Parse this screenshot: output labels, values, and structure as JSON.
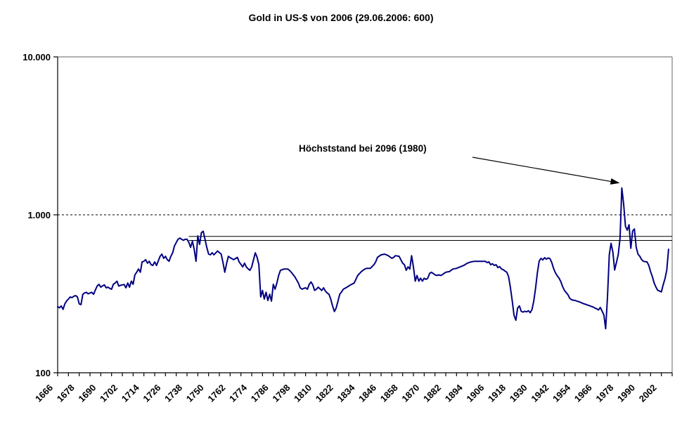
{
  "chart_data": {
    "type": "line",
    "title": "Gold in US-$ von 2006 (29.06.2006: 600)",
    "xlabel": "",
    "ylabel": "",
    "y_scale": "log",
    "y_range": [
      100,
      10000
    ],
    "y_ticks": [
      {
        "label": "100",
        "value": 100
      },
      {
        "label": "1.000",
        "value": 1000
      },
      {
        "label": "10.000",
        "value": 10000
      }
    ],
    "x_range": [
      1666,
      2008
    ],
    "x_tick_step": 6,
    "x_labels": [
      1666,
      1678,
      1690,
      1702,
      1714,
      1726,
      1738,
      1750,
      1762,
      1774,
      1786,
      1798,
      1810,
      1822,
      1834,
      1846,
      1858,
      1870,
      1882,
      1894,
      1906,
      1918,
      1930,
      1942,
      1954,
      1966,
      1978,
      1990,
      2002
    ],
    "grid": "off",
    "legend": "none",
    "colors": {
      "series": "#000080",
      "frame": "#808080",
      "axis": "#000000",
      "annotation": "#000000"
    },
    "reference_lines": [
      {
        "value": 1000,
        "style": "dotted",
        "from_year": 1666
      },
      {
        "value": 730,
        "style": "solid",
        "from_year": 1739
      },
      {
        "value": 688,
        "style": "solid",
        "from_year": 1739
      }
    ],
    "annotation": {
      "text": "Höchststand bei 2096 (1980)",
      "points_to_year": 1980,
      "arrow_from": [
        672,
        224
      ]
    },
    "series": [
      {
        "name": "Gold in US-$ von 2006",
        "color": "#000080",
        "points": [
          [
            1666,
            262
          ],
          [
            1667,
            258
          ],
          [
            1668,
            265
          ],
          [
            1669,
            252
          ],
          [
            1670,
            273
          ],
          [
            1671,
            285
          ],
          [
            1672,
            293
          ],
          [
            1673,
            302
          ],
          [
            1674,
            299
          ],
          [
            1675,
            305
          ],
          [
            1676,
            308
          ],
          [
            1677,
            302
          ],
          [
            1678,
            273
          ],
          [
            1679,
            270
          ],
          [
            1680,
            314
          ],
          [
            1681,
            320
          ],
          [
            1682,
            323
          ],
          [
            1683,
            316
          ],
          [
            1684,
            320
          ],
          [
            1685,
            323
          ],
          [
            1686,
            314
          ],
          [
            1687,
            335
          ],
          [
            1688,
            354
          ],
          [
            1689,
            363
          ],
          [
            1690,
            348
          ],
          [
            1691,
            355
          ],
          [
            1692,
            360
          ],
          [
            1693,
            345
          ],
          [
            1694,
            348
          ],
          [
            1695,
            342
          ],
          [
            1696,
            338
          ],
          [
            1697,
            363
          ],
          [
            1698,
            370
          ],
          [
            1699,
            380
          ],
          [
            1700,
            354
          ],
          [
            1701,
            358
          ],
          [
            1702,
            360
          ],
          [
            1703,
            362
          ],
          [
            1704,
            345
          ],
          [
            1705,
            370
          ],
          [
            1706,
            348
          ],
          [
            1707,
            380
          ],
          [
            1708,
            363
          ],
          [
            1709,
            417
          ],
          [
            1710,
            433
          ],
          [
            1711,
            454
          ],
          [
            1712,
            433
          ],
          [
            1713,
            503
          ],
          [
            1714,
            508
          ],
          [
            1715,
            520
          ],
          [
            1716,
            494
          ],
          [
            1717,
            508
          ],
          [
            1718,
            483
          ],
          [
            1719,
            478
          ],
          [
            1720,
            503
          ],
          [
            1721,
            478
          ],
          [
            1722,
            510
          ],
          [
            1723,
            546
          ],
          [
            1724,
            564
          ],
          [
            1725,
            530
          ],
          [
            1726,
            546
          ],
          [
            1727,
            520
          ],
          [
            1728,
            508
          ],
          [
            1729,
            546
          ],
          [
            1730,
            575
          ],
          [
            1731,
            635
          ],
          [
            1732,
            668
          ],
          [
            1733,
            700
          ],
          [
            1734,
            713
          ],
          [
            1735,
            700
          ],
          [
            1736,
            690
          ],
          [
            1737,
            700
          ],
          [
            1738,
            700
          ],
          [
            1739,
            668
          ],
          [
            1740,
            622
          ],
          [
            1741,
            680
          ],
          [
            1742,
            605
          ],
          [
            1743,
            508
          ],
          [
            1744,
            735
          ],
          [
            1745,
            650
          ],
          [
            1746,
            770
          ],
          [
            1747,
            787
          ],
          [
            1748,
            700
          ],
          [
            1749,
            622
          ],
          [
            1750,
            564
          ],
          [
            1751,
            558
          ],
          [
            1752,
            575
          ],
          [
            1753,
            558
          ],
          [
            1755,
            590
          ],
          [
            1757,
            564
          ],
          [
            1758,
            500
          ],
          [
            1759,
            433
          ],
          [
            1760,
            490
          ],
          [
            1761,
            546
          ],
          [
            1762,
            535
          ],
          [
            1764,
            520
          ],
          [
            1766,
            538
          ],
          [
            1767,
            503
          ],
          [
            1768,
            485
          ],
          [
            1769,
            468
          ],
          [
            1770,
            494
          ],
          [
            1771,
            468
          ],
          [
            1772,
            455
          ],
          [
            1773,
            445
          ],
          [
            1774,
            468
          ],
          [
            1775,
            520
          ],
          [
            1776,
            575
          ],
          [
            1777,
            538
          ],
          [
            1778,
            483
          ],
          [
            1779,
            302
          ],
          [
            1780,
            332
          ],
          [
            1781,
            293
          ],
          [
            1782,
            323
          ],
          [
            1783,
            287
          ],
          [
            1784,
            314
          ],
          [
            1785,
            284
          ],
          [
            1786,
            363
          ],
          [
            1787,
            338
          ],
          [
            1788,
            370
          ],
          [
            1789,
            413
          ],
          [
            1790,
            445
          ],
          [
            1792,
            454
          ],
          [
            1794,
            454
          ],
          [
            1795,
            445
          ],
          [
            1796,
            433
          ],
          [
            1798,
            405
          ],
          [
            1800,
            370
          ],
          [
            1801,
            345
          ],
          [
            1802,
            338
          ],
          [
            1803,
            342
          ],
          [
            1804,
            345
          ],
          [
            1805,
            338
          ],
          [
            1806,
            363
          ],
          [
            1807,
            376
          ],
          [
            1808,
            360
          ],
          [
            1809,
            332
          ],
          [
            1810,
            338
          ],
          [
            1811,
            348
          ],
          [
            1812,
            340
          ],
          [
            1813,
            332
          ],
          [
            1814,
            345
          ],
          [
            1815,
            329
          ],
          [
            1816,
            320
          ],
          [
            1817,
            314
          ],
          [
            1818,
            293
          ],
          [
            1819,
            265
          ],
          [
            1820,
            244
          ],
          [
            1821,
            257
          ],
          [
            1822,
            284
          ],
          [
            1823,
            314
          ],
          [
            1824,
            325
          ],
          [
            1825,
            338
          ],
          [
            1827,
            348
          ],
          [
            1829,
            360
          ],
          [
            1831,
            370
          ],
          [
            1833,
            413
          ],
          [
            1835,
            437
          ],
          [
            1837,
            454
          ],
          [
            1838,
            458
          ],
          [
            1840,
            458
          ],
          [
            1842,
            483
          ],
          [
            1843,
            503
          ],
          [
            1844,
            538
          ],
          [
            1846,
            558
          ],
          [
            1848,
            564
          ],
          [
            1850,
            551
          ],
          [
            1852,
            530
          ],
          [
            1853,
            538
          ],
          [
            1854,
            551
          ],
          [
            1856,
            546
          ],
          [
            1858,
            494
          ],
          [
            1859,
            483
          ],
          [
            1860,
            445
          ],
          [
            1861,
            468
          ],
          [
            1862,
            454
          ],
          [
            1863,
            551
          ],
          [
            1864,
            468
          ],
          [
            1865,
            380
          ],
          [
            1866,
            413
          ],
          [
            1867,
            380
          ],
          [
            1868,
            397
          ],
          [
            1869,
            380
          ],
          [
            1870,
            397
          ],
          [
            1871,
            390
          ],
          [
            1872,
            397
          ],
          [
            1873,
            425
          ],
          [
            1874,
            433
          ],
          [
            1875,
            425
          ],
          [
            1876,
            417
          ],
          [
            1877,
            413
          ],
          [
            1878,
            417
          ],
          [
            1879,
            413
          ],
          [
            1880,
            417
          ],
          [
            1881,
            425
          ],
          [
            1882,
            433
          ],
          [
            1884,
            437
          ],
          [
            1886,
            454
          ],
          [
            1888,
            458
          ],
          [
            1890,
            468
          ],
          [
            1892,
            478
          ],
          [
            1894,
            494
          ],
          [
            1896,
            503
          ],
          [
            1898,
            508
          ],
          [
            1900,
            508
          ],
          [
            1902,
            508
          ],
          [
            1904,
            508
          ],
          [
            1905,
            498
          ],
          [
            1906,
            503
          ],
          [
            1907,
            483
          ],
          [
            1908,
            490
          ],
          [
            1909,
            478
          ],
          [
            1910,
            483
          ],
          [
            1911,
            463
          ],
          [
            1912,
            470
          ],
          [
            1913,
            454
          ],
          [
            1914,
            449
          ],
          [
            1915,
            440
          ],
          [
            1916,
            433
          ],
          [
            1917,
            405
          ],
          [
            1918,
            345
          ],
          [
            1919,
            284
          ],
          [
            1920,
            231
          ],
          [
            1921,
            215
          ],
          [
            1922,
            257
          ],
          [
            1923,
            265
          ],
          [
            1924,
            245
          ],
          [
            1925,
            242
          ],
          [
            1926,
            245
          ],
          [
            1927,
            243
          ],
          [
            1928,
            247
          ],
          [
            1929,
            240
          ],
          [
            1930,
            252
          ],
          [
            1931,
            285
          ],
          [
            1932,
            345
          ],
          [
            1933,
            430
          ],
          [
            1934,
            510
          ],
          [
            1935,
            530
          ],
          [
            1936,
            518
          ],
          [
            1937,
            535
          ],
          [
            1938,
            524
          ],
          [
            1939,
            533
          ],
          [
            1940,
            528
          ],
          [
            1941,
            498
          ],
          [
            1942,
            458
          ],
          [
            1943,
            430
          ],
          [
            1944,
            412
          ],
          [
            1945,
            398
          ],
          [
            1946,
            378
          ],
          [
            1947,
            352
          ],
          [
            1948,
            333
          ],
          [
            1949,
            322
          ],
          [
            1950,
            312
          ],
          [
            1951,
            296
          ],
          [
            1952,
            290
          ],
          [
            1953,
            288
          ],
          [
            1954,
            287
          ],
          [
            1955,
            284
          ],
          [
            1956,
            282
          ],
          [
            1957,
            279
          ],
          [
            1958,
            276
          ],
          [
            1959,
            273
          ],
          [
            1960,
            271
          ],
          [
            1961,
            268
          ],
          [
            1962,
            266
          ],
          [
            1963,
            263
          ],
          [
            1964,
            261
          ],
          [
            1965,
            257
          ],
          [
            1966,
            254
          ],
          [
            1967,
            250
          ],
          [
            1968,
            259
          ],
          [
            1969,
            246
          ],
          [
            1970,
            232
          ],
          [
            1971,
            190
          ],
          [
            1972,
            300
          ],
          [
            1973,
            560
          ],
          [
            1974,
            660
          ],
          [
            1975,
            580
          ],
          [
            1976,
            447
          ],
          [
            1977,
            500
          ],
          [
            1978,
            560
          ],
          [
            1979,
            713
          ],
          [
            1980,
            1480
          ],
          [
            1981,
            1170
          ],
          [
            1982,
            845
          ],
          [
            1983,
            800
          ],
          [
            1984,
            865
          ],
          [
            1985,
            614
          ],
          [
            1986,
            790
          ],
          [
            1987,
            813
          ],
          [
            1988,
            622
          ],
          [
            1989,
            564
          ],
          [
            1990,
            546
          ],
          [
            1991,
            520
          ],
          [
            1992,
            508
          ],
          [
            1993,
            505
          ],
          [
            1994,
            503
          ],
          [
            1995,
            478
          ],
          [
            1996,
            437
          ],
          [
            1997,
            405
          ],
          [
            1998,
            370
          ],
          [
            1999,
            348
          ],
          [
            2000,
            332
          ],
          [
            2001,
            329
          ],
          [
            2002,
            325
          ],
          [
            2003,
            360
          ],
          [
            2004,
            394
          ],
          [
            2005,
            445
          ],
          [
            2006,
            605
          ]
        ]
      }
    ]
  }
}
